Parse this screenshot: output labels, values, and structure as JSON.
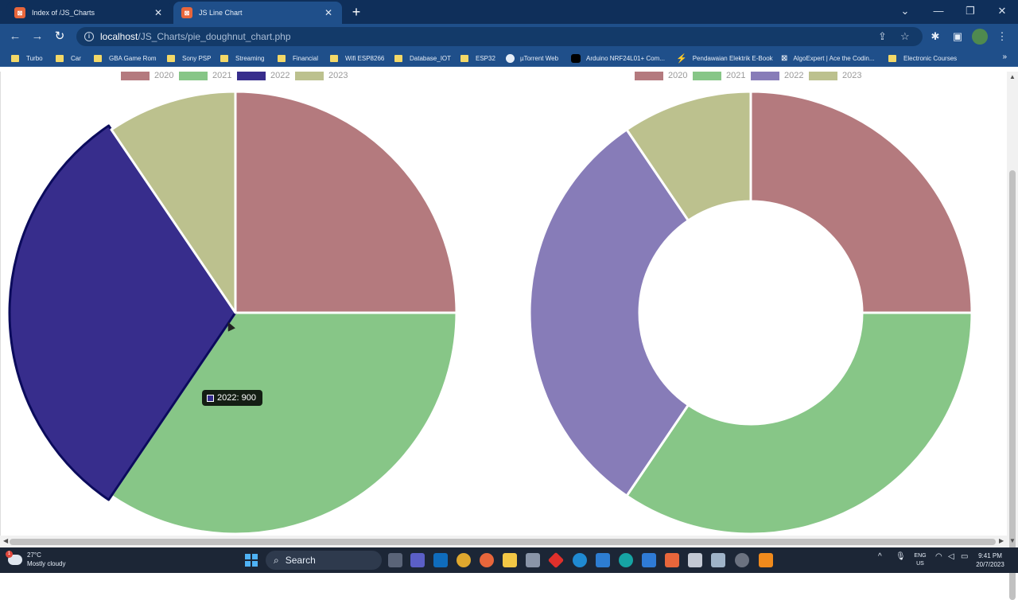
{
  "browser": {
    "tabs": [
      {
        "title": "Index of /JS_Charts",
        "active": false
      },
      {
        "title": "JS Line Chart",
        "active": true
      }
    ],
    "url_host": "localhost",
    "url_path": "/JS_Charts/pie_doughnut_chart.php",
    "bookmarks": [
      {
        "label": "Turbo",
        "icon": "folder-icon"
      },
      {
        "label": "Car",
        "icon": "folder-icon"
      },
      {
        "label": "GBA Game Rom",
        "icon": "folder-icon"
      },
      {
        "label": "Sony PSP",
        "icon": "folder-icon"
      },
      {
        "label": "Streaming",
        "icon": "folder-icon"
      },
      {
        "label": "Financial",
        "icon": "folder-icon"
      },
      {
        "label": "Wifi ESP8266",
        "icon": "folder-icon"
      },
      {
        "label": "Database_IOT",
        "icon": "folder-icon"
      },
      {
        "label": "ESP32",
        "icon": "folder-icon"
      },
      {
        "label": "µTorrent Web",
        "icon": "globe-icon"
      },
      {
        "label": "Arduino NRF24L01+ Com...",
        "icon": "medium-icon"
      },
      {
        "label": "Pendawaian Elektrik E-Book",
        "icon": "bolt-icon"
      },
      {
        "label": "AlgoExpert | Ace the Codin...",
        "icon": "algoexpert-icon"
      },
      {
        "label": "Electronic Courses",
        "icon": "folder-icon"
      }
    ]
  },
  "chart_data": [
    {
      "type": "pie",
      "categories": [
        "2020",
        "2021",
        "2022",
        "2023"
      ],
      "values": [
        725,
        1000,
        900,
        275
      ],
      "colors": [
        "#b47a7e",
        "#87c687",
        "#372d8c",
        "#bcc18e"
      ],
      "legend": "top",
      "highlighted": "2022"
    },
    {
      "type": "doughnut",
      "categories": [
        "2020",
        "2021",
        "2022",
        "2023"
      ],
      "values": [
        725,
        1000,
        900,
        275
      ],
      "colors": [
        "#b47a7e",
        "#87c687",
        "#877cb8",
        "#bcc18e"
      ],
      "legend": "top"
    }
  ],
  "tooltip": {
    "text": "2022: 900"
  },
  "taskbar": {
    "weather_temp": "27°C",
    "weather_desc": "Mostly cloudy",
    "search_label": "Search",
    "lang_top": "ENG",
    "lang_bottom": "US",
    "time": "9:41 PM",
    "date": "20/7/2023"
  }
}
